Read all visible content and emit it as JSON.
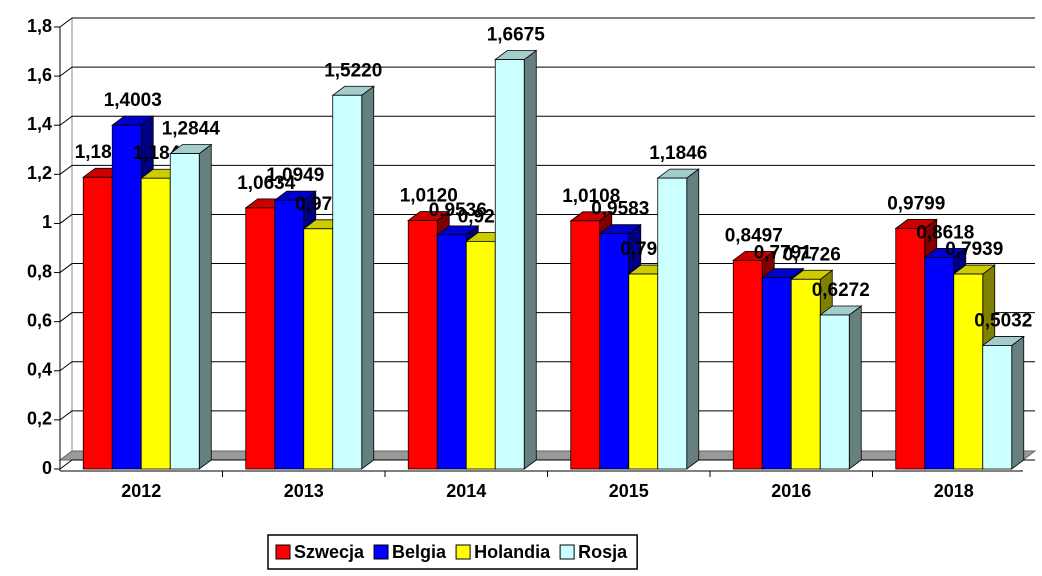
{
  "chart_data": {
    "type": "bar3d",
    "categories": [
      "2012",
      "2013",
      "2014",
      "2015",
      "2016",
      "2018"
    ],
    "series": [
      {
        "name": "Szwecja",
        "color": "#ff0000",
        "values": [
          1.1882,
          1.0634,
          1.012,
          1.0108,
          0.8497,
          0.9799
        ],
        "value_labels": [
          "1,1882",
          "1,0634",
          "1,0120",
          "1,0108",
          "0,8497",
          "0,9799"
        ]
      },
      {
        "name": "Belgia",
        "color": "#0000ff",
        "values": [
          1.4003,
          1.0949,
          0.9536,
          0.9583,
          0.7791,
          0.8618
        ],
        "value_labels": [
          "1,4003",
          "1,0949",
          "0,9536",
          "0,9583",
          "0,7791",
          "0,8618"
        ]
      },
      {
        "name": "Holandia",
        "color": "#ffff00",
        "values": [
          1.1842,
          0.9782,
          0.927,
          0.7939,
          0.7726,
          0.7939
        ],
        "value_labels": [
          "1,1842",
          "0,9782",
          "0,9270",
          "0,7939",
          "0,7726",
          "0,7939"
        ]
      },
      {
        "name": "Rosja",
        "color": "#ccffff",
        "values": [
          1.2844,
          1.522,
          1.6675,
          1.1846,
          0.6272,
          0.5032
        ],
        "value_labels": [
          "1,2844",
          "1,5220",
          "1,6675",
          "1,1846",
          "0,6272",
          "0,5032"
        ]
      }
    ],
    "ylim": [
      0,
      1.8
    ],
    "yticks": [
      0,
      {
        "value": 0.2,
        "label": "0,2"
      },
      {
        "value": 0.4,
        "label": "0,4"
      },
      {
        "value": 0.6,
        "label": "0,6"
      },
      {
        "value": 0.8,
        "label": "0,8"
      },
      1,
      {
        "value": 1.2,
        "label": "1,2"
      },
      {
        "value": 1.4,
        "label": "1,4"
      },
      {
        "value": 1.6,
        "label": "1,6"
      },
      {
        "value": 1.8,
        "label": "1,8"
      }
    ],
    "grid": true,
    "legend": "bottom"
  }
}
